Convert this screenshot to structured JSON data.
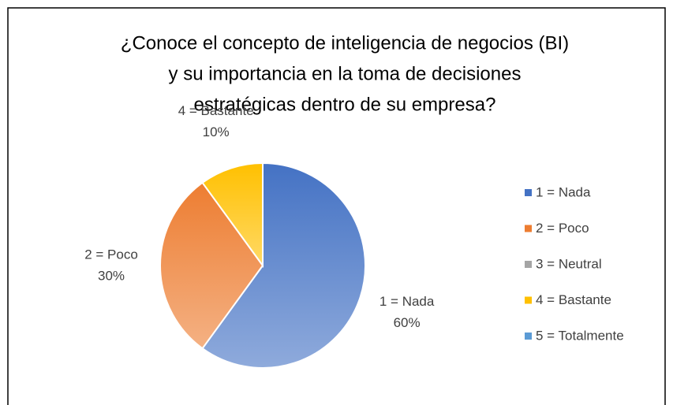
{
  "chart_data": {
    "type": "pie",
    "title": [
      "¿Conoce el concepto de inteligencia de negocios (BI)",
      "y su importancia en la toma de decisiones",
      "estratégicas dentro de su empresa?"
    ],
    "categories": [
      "1 = Nada",
      "2 = Poco",
      "3 = Neutral",
      "4 = Bastante",
      "5 = Totalmente"
    ],
    "values": [
      60,
      30,
      0,
      10,
      0
    ],
    "value_labels": [
      "60%",
      "30%",
      null,
      "10%",
      null
    ],
    "colors": [
      "#4472c4",
      "#ed7d31",
      "#a5a5a5",
      "#ffc000",
      "#5b9bd5"
    ],
    "legend": "right"
  }
}
